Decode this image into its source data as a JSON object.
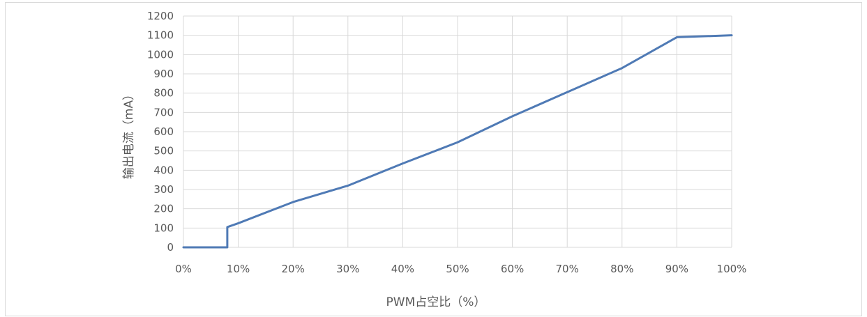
{
  "chart_data": {
    "type": "line",
    "title": "",
    "xlabel": "PWM占空比（%）",
    "ylabel": "输出电流（mA）",
    "x_tick_labels": [
      "0%",
      "10%",
      "20%",
      "30%",
      "40%",
      "50%",
      "60%",
      "70%",
      "80%",
      "90%",
      "100%"
    ],
    "y_tick_labels": [
      "0",
      "100",
      "200",
      "300",
      "400",
      "500",
      "600",
      "700",
      "800",
      "900",
      "1000",
      "1100",
      "1200"
    ],
    "xlim": [
      0,
      100
    ],
    "ylim": [
      0,
      1200
    ],
    "grid": true,
    "legend": "none",
    "series_color": "#4f7ab5",
    "series": [
      {
        "x": [
          0,
          8,
          8,
          10,
          20,
          30,
          40,
          50,
          60,
          70,
          80,
          90,
          100
        ],
        "y": [
          0,
          0,
          105,
          125,
          235,
          320,
          435,
          545,
          680,
          805,
          930,
          1090,
          1100
        ]
      }
    ]
  }
}
